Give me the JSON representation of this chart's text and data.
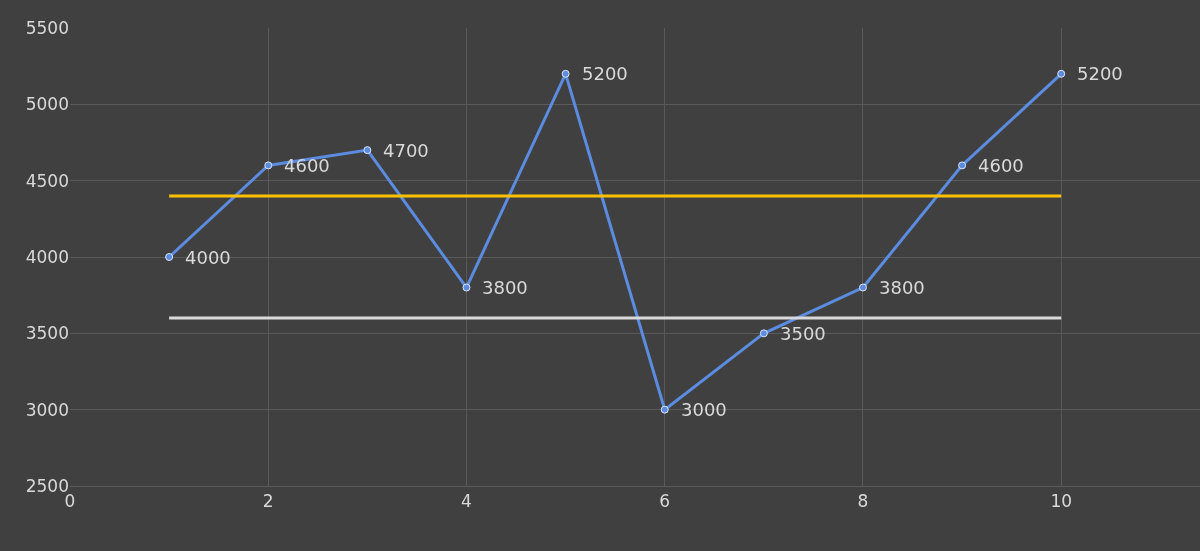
{
  "chart_data": {
    "type": "line",
    "x": [
      1,
      2,
      3,
      4,
      5,
      6,
      7,
      8,
      9,
      10
    ],
    "series": [
      {
        "color": "#5b8ce0",
        "values": [
          4000,
          4600,
          4700,
          3800,
          5200,
          3000,
          3500,
          3800,
          4600,
          5200
        ],
        "marker": "circle",
        "data_labels": true
      },
      {
        "type": "line",
        "color": "#ffc000",
        "values": [
          4400,
          4400,
          4400,
          4400,
          4400,
          4400,
          4400,
          4400,
          4400,
          4400
        ],
        "marker": "none"
      },
      {
        "type": "line",
        "color": "#d9d9d9",
        "values": [
          3600,
          3600,
          3600,
          3600,
          3600,
          3600,
          3600,
          3600,
          3600,
          3600
        ],
        "marker": "none"
      }
    ],
    "xlim": [
      0,
      11.4
    ],
    "xticks": [
      0,
      2,
      4,
      6,
      8,
      10
    ],
    "ylim": [
      2500,
      5500
    ],
    "yticks": [
      2500,
      3000,
      3500,
      4000,
      4500,
      5000,
      5500
    ],
    "grid": true,
    "line_style": "solid"
  }
}
